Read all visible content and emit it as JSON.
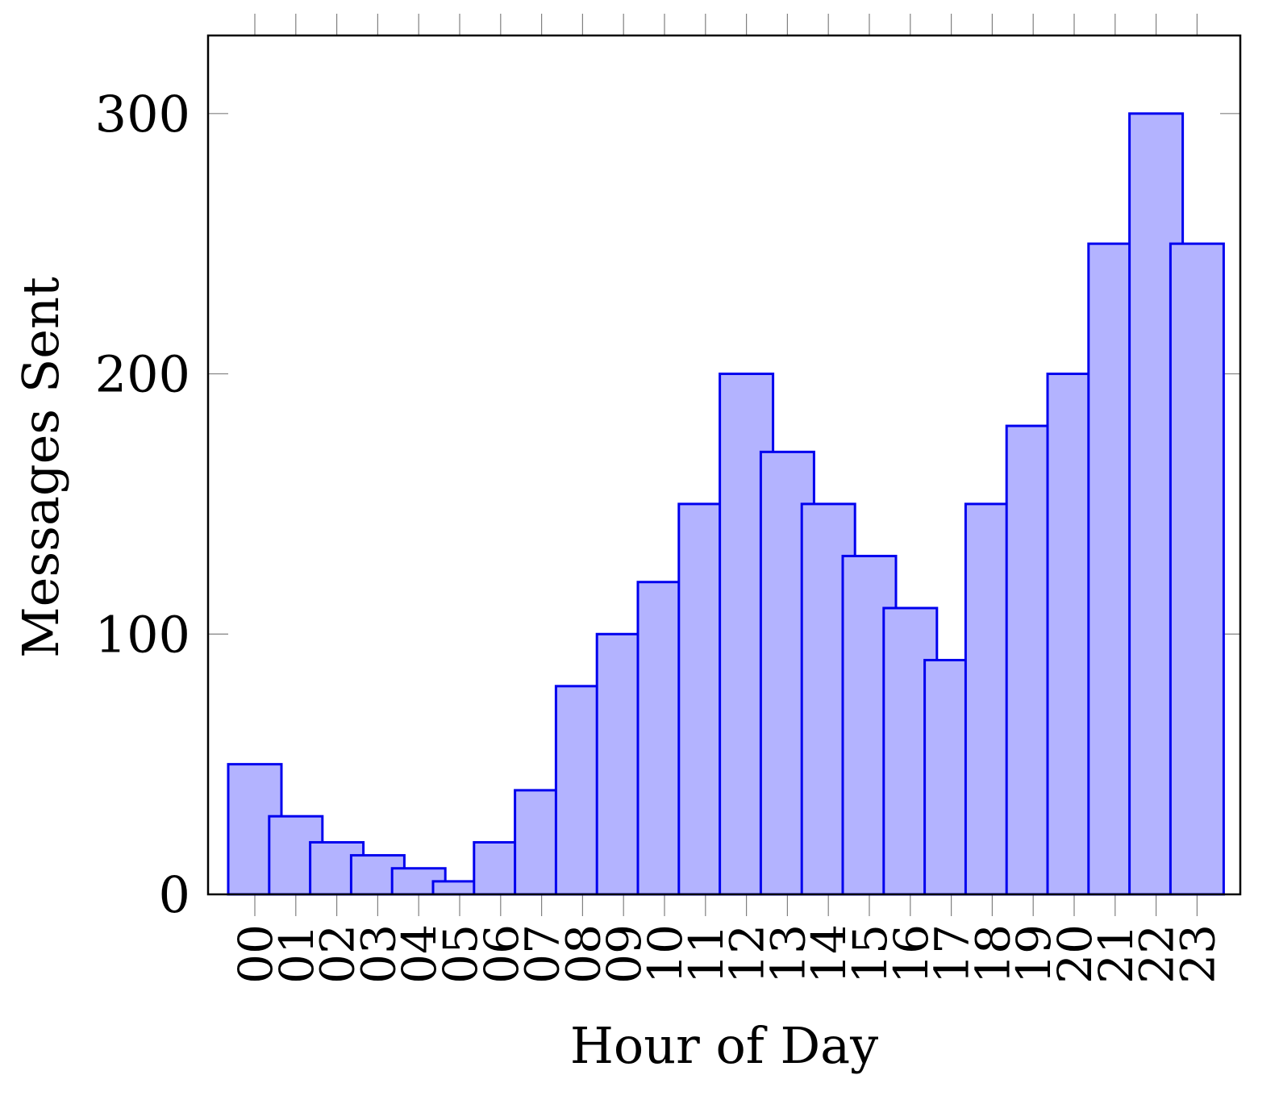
{
  "chart_data": {
    "type": "bar",
    "xlabel": "Hour of Day",
    "ylabel": "Messages Sent",
    "categories": [
      "00",
      "01",
      "02",
      "03",
      "04",
      "05",
      "06",
      "07",
      "08",
      "09",
      "10",
      "11",
      "12",
      "13",
      "14",
      "15",
      "16",
      "17",
      "18",
      "19",
      "20",
      "21",
      "22",
      "23"
    ],
    "values": [
      50,
      30,
      20,
      15,
      10,
      5,
      20,
      40,
      80,
      100,
      120,
      150,
      200,
      170,
      150,
      130,
      110,
      90,
      150,
      180,
      200,
      250,
      300,
      250
    ],
    "ylim": [
      0,
      330
    ],
    "yticks": [
      0,
      100,
      200,
      300
    ],
    "grid": false,
    "colors": {
      "bar_fill": "#b3b3ff",
      "bar_stroke": "#0000ee",
      "axis": "#000000",
      "tick": "#808080"
    }
  }
}
